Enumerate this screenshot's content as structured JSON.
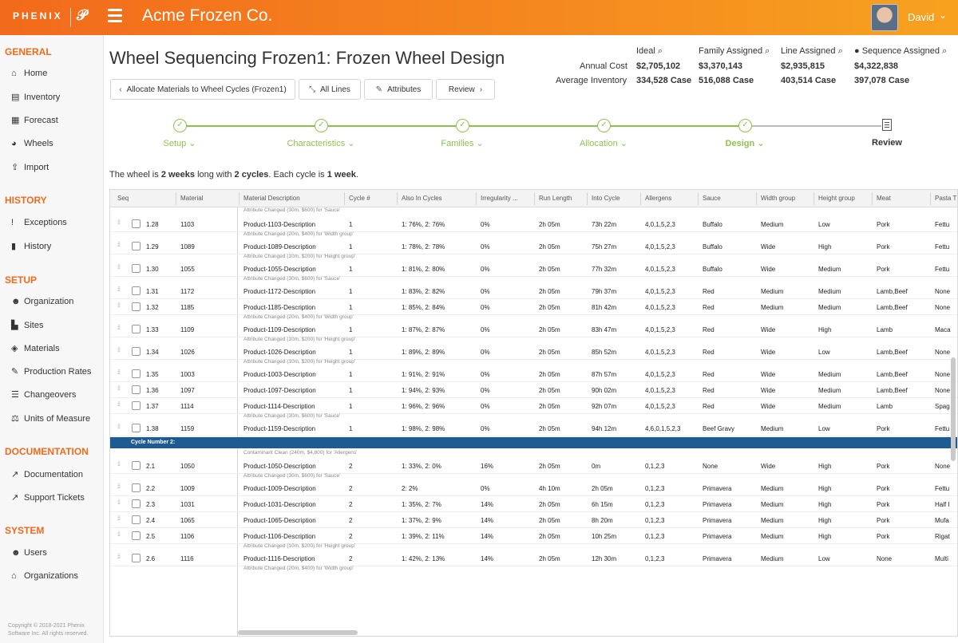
{
  "app": {
    "logo_text": "PHENIX",
    "logo_mark": "𝒫",
    "company": "Acme Frozen Co.",
    "user": "David"
  },
  "sidebar": {
    "sections": [
      {
        "title": "GENERAL",
        "items": [
          {
            "label": "Home",
            "icon": "home-icon",
            "glyph": "⌂"
          },
          {
            "label": "Inventory",
            "icon": "chart-icon",
            "glyph": "▤"
          },
          {
            "label": "Forecast",
            "icon": "map-icon",
            "glyph": "▦"
          },
          {
            "label": "Wheels",
            "icon": "pie-icon",
            "glyph": "◕"
          },
          {
            "label": "Import",
            "icon": "upload-icon",
            "glyph": "⇪"
          }
        ]
      },
      {
        "title": "HISTORY",
        "items": [
          {
            "label": "Exceptions",
            "icon": "exclamation-icon",
            "glyph": "!"
          },
          {
            "label": "History",
            "icon": "book-icon",
            "glyph": "▮"
          }
        ]
      },
      {
        "title": "SETUP",
        "items": [
          {
            "label": "Organization",
            "icon": "users-icon",
            "glyph": "☻"
          },
          {
            "label": "Sites",
            "icon": "building-icon",
            "glyph": "▙"
          },
          {
            "label": "Materials",
            "icon": "cube-icon",
            "glyph": "◈"
          },
          {
            "label": "Production Rates",
            "icon": "ruler-icon",
            "glyph": "✎"
          },
          {
            "label": "Changeovers",
            "icon": "list-icon",
            "glyph": "☰"
          },
          {
            "label": "Units of Measure",
            "icon": "scale-icon",
            "glyph": "⚖"
          }
        ]
      },
      {
        "title": "DOCUMENTATION",
        "items": [
          {
            "label": "Documentation",
            "icon": "external-link-icon",
            "glyph": "↗"
          },
          {
            "label": "Support Tickets",
            "icon": "external-link-icon",
            "glyph": "↗"
          }
        ]
      },
      {
        "title": "SYSTEM",
        "items": [
          {
            "label": "Users",
            "icon": "users-icon",
            "glyph": "☻"
          },
          {
            "label": "Organizations",
            "icon": "home-icon",
            "glyph": "⌂"
          }
        ]
      }
    ],
    "copyright": "Copyright © 2018-2021 Phenix Software Inc. All rights reserved."
  },
  "header": {
    "title": "Wheel Sequencing Frozen1: Frozen Wheel Design",
    "buttons": {
      "allocate": "Allocate Materials to Wheel Cycles (Frozen1)",
      "all_lines": "All Lines",
      "attributes": "Attributes",
      "review": "Review"
    }
  },
  "costs": {
    "row_labels": {
      "annual": "Annual Cost",
      "inventory": "Average Inventory"
    },
    "columns": [
      {
        "label": "Ideal",
        "annual": "$2,705,102",
        "inventory": "334,528 Case"
      },
      {
        "label": "Family Assigned",
        "annual": "$3,370,143",
        "inventory": "516,088 Case"
      },
      {
        "label": "Line Assigned",
        "annual": "$2,935,815",
        "inventory": "403,514 Case"
      },
      {
        "label": "Sequence Assigned",
        "annual": "$4,322,838",
        "inventory": "397,078 Case"
      }
    ]
  },
  "steps": [
    "Setup",
    "Characteristics",
    "Families",
    "Allocation",
    "Design",
    "Review"
  ],
  "summary": {
    "p1": "The wheel is ",
    "weeks": "2 weeks",
    "p2": " long with ",
    "cycles": "2 cycles",
    "p3": ". Each cycle is ",
    "cycle_len": "1 week",
    "p4": "."
  },
  "table": {
    "headers": [
      "Seq",
      "Material",
      "Material Description",
      "Cycle #",
      "Also In Cycles",
      "Irregularity ...",
      "Run Length",
      "Into Cycle",
      "Allergens",
      "Sauce",
      "Width group",
      "Height group",
      "Meat",
      "Pasta T"
    ],
    "top_annotation": "Attribute Changed (30m, $600) for 'Sauce'",
    "cycle_band": "Cycle Number 2:",
    "rows": [
      {
        "seq": "1.28",
        "material": "1103",
        "desc": "Product-1103-Description",
        "cycle": "1",
        "also": "1: 76%, 2: 76%",
        "irr": "0%",
        "run": "2h 05m",
        "into": "73h 22m",
        "allergens": "4,0,1,5,2,3",
        "sauce": "Buffalo",
        "width": "Medium",
        "height": "Low",
        "meat": "Pork",
        "pasta": "Fettu",
        "after": "Attribute Changed (20m, $400) for 'Width group'"
      },
      {
        "seq": "1.29",
        "material": "1089",
        "desc": "Product-1089-Description",
        "cycle": "1",
        "also": "1: 78%, 2: 78%",
        "irr": "0%",
        "run": "2h 05m",
        "into": "75h 27m",
        "allergens": "4,0,1,5,2,3",
        "sauce": "Buffalo",
        "width": "Wide",
        "height": "High",
        "meat": "Pork",
        "pasta": "Fettu",
        "after": "Attribute Changed (10m, $200) for 'Height group'"
      },
      {
        "seq": "1.30",
        "material": "1055",
        "desc": "Product-1055-Description",
        "cycle": "1",
        "also": "1: 81%, 2: 80%",
        "irr": "0%",
        "run": "2h 05m",
        "into": "77h 32m",
        "allergens": "4,0,1,5,2,3",
        "sauce": "Buffalo",
        "width": "Wide",
        "height": "Medium",
        "meat": "Pork",
        "pasta": "Fettu",
        "after": "Attribute Changed (30m, $600) for 'Sauce'"
      },
      {
        "seq": "1.31",
        "material": "1172",
        "desc": "Product-1172-Description",
        "cycle": "1",
        "also": "1: 83%, 2: 82%",
        "irr": "0%",
        "run": "2h 05m",
        "into": "79h 37m",
        "allergens": "4,0,1,5,2,3",
        "sauce": "Red",
        "width": "Medium",
        "height": "Medium",
        "meat": "Lamb,Beef",
        "pasta": "None",
        "after": ""
      },
      {
        "seq": "1.32",
        "material": "1185",
        "desc": "Product-1185-Description",
        "cycle": "1",
        "also": "1: 85%, 2: 84%",
        "irr": "0%",
        "run": "2h 05m",
        "into": "81h 42m",
        "allergens": "4,0,1,5,2,3",
        "sauce": "Red",
        "width": "Medium",
        "height": "Medium",
        "meat": "Lamb,Beef",
        "pasta": "None",
        "after": "Attribute Changed (20m, $400) for 'Width group'"
      },
      {
        "seq": "1.33",
        "material": "1109",
        "desc": "Product-1109-Description",
        "cycle": "1",
        "also": "1: 87%, 2: 87%",
        "irr": "0%",
        "run": "2h 05m",
        "into": "83h 47m",
        "allergens": "4,0,1,5,2,3",
        "sauce": "Red",
        "width": "Wide",
        "height": "High",
        "meat": "Lamb",
        "pasta": "Maca",
        "after": "Attribute Changed (10m, $200) for 'Height group'"
      },
      {
        "seq": "1.34",
        "material": "1026",
        "desc": "Product-1026-Description",
        "cycle": "1",
        "also": "1: 89%, 2: 89%",
        "irr": "0%",
        "run": "2h 05m",
        "into": "85h 52m",
        "allergens": "4,0,1,5,2,3",
        "sauce": "Red",
        "width": "Wide",
        "height": "Low",
        "meat": "Lamb,Beef",
        "pasta": "None",
        "after": "Attribute Changed (10m, $200) for 'Height group'"
      },
      {
        "seq": "1.35",
        "material": "1003",
        "desc": "Product-1003-Description",
        "cycle": "1",
        "also": "1: 91%, 2: 91%",
        "irr": "0%",
        "run": "2h 05m",
        "into": "87h 57m",
        "allergens": "4,0,1,5,2,3",
        "sauce": "Red",
        "width": "Wide",
        "height": "Medium",
        "meat": "Lamb,Beef",
        "pasta": "None",
        "after": ""
      },
      {
        "seq": "1.36",
        "material": "1097",
        "desc": "Product-1097-Description",
        "cycle": "1",
        "also": "1: 94%, 2: 93%",
        "irr": "0%",
        "run": "2h 05m",
        "into": "90h 02m",
        "allergens": "4,0,1,5,2,3",
        "sauce": "Red",
        "width": "Wide",
        "height": "Medium",
        "meat": "Lamb,Beef",
        "pasta": "None",
        "after": ""
      },
      {
        "seq": "1.37",
        "material": "1114",
        "desc": "Product-1114-Description",
        "cycle": "1",
        "also": "1: 96%, 2: 96%",
        "irr": "0%",
        "run": "2h 05m",
        "into": "92h 07m",
        "allergens": "4,0,1,5,2,3",
        "sauce": "Red",
        "width": "Wide",
        "height": "Medium",
        "meat": "Lamb",
        "pasta": "Spag",
        "after": "Attribute Changed (30m, $600) for 'Sauce'"
      },
      {
        "seq": "1.38",
        "material": "1159",
        "desc": "Product-1159-Description",
        "cycle": "1",
        "also": "1: 98%, 2: 98%",
        "irr": "0%",
        "run": "2h 05m",
        "into": "94h 12m",
        "allergens": "4,6,0,1,5,2,3",
        "sauce": "Beef Gravy",
        "width": "Medium",
        "height": "Low",
        "meat": "Pork",
        "pasta": "Fettu",
        "after": "",
        "band_after": true
      },
      {
        "seq": "2.1",
        "material": "1050",
        "desc": "Product-1050-Description",
        "cycle": "2",
        "also": "1: 33%, 2: 0%",
        "irr": "16%",
        "run": "2h 05m",
        "into": "0m",
        "allergens": "0,1,2,3",
        "sauce": "None",
        "width": "Wide",
        "height": "High",
        "meat": "Pork",
        "pasta": "None",
        "before": "Contaminant Clean (240m, $4,800) for 'Allergens'",
        "after": "Attribute Changed (30m, $600) for 'Sauce'"
      },
      {
        "seq": "2.2",
        "material": "1009",
        "desc": "Product-1009-Description",
        "cycle": "2",
        "also": "2: 2%",
        "irr": "0%",
        "run": "4h 10m",
        "into": "2h 05m",
        "allergens": "0,1,2,3",
        "sauce": "Primavera",
        "width": "Medium",
        "height": "High",
        "meat": "Pork",
        "pasta": "Fettu",
        "after": ""
      },
      {
        "seq": "2.3",
        "material": "1031",
        "desc": "Product-1031-Description",
        "cycle": "2",
        "also": "1: 35%, 2: 7%",
        "irr": "14%",
        "run": "2h 05m",
        "into": "6h 15m",
        "allergens": "0,1,2,3",
        "sauce": "Primavera",
        "width": "Medium",
        "height": "High",
        "meat": "Pork",
        "pasta": "Half I",
        "after": ""
      },
      {
        "seq": "2.4",
        "material": "1065",
        "desc": "Product-1065-Description",
        "cycle": "2",
        "also": "1: 37%, 2: 9%",
        "irr": "14%",
        "run": "2h 05m",
        "into": "8h 20m",
        "allergens": "0,1,2,3",
        "sauce": "Primavera",
        "width": "Medium",
        "height": "High",
        "meat": "Pork",
        "pasta": "Mufa",
        "after": ""
      },
      {
        "seq": "2.5",
        "material": "1106",
        "desc": "Product-1106-Description",
        "cycle": "2",
        "also": "1: 39%, 2: 11%",
        "irr": "14%",
        "run": "2h 05m",
        "into": "10h 25m",
        "allergens": "0,1,2,3",
        "sauce": "Primavera",
        "width": "Medium",
        "height": "High",
        "meat": "Pork",
        "pasta": "Rigat",
        "after": "Attribute Changed (10m, $200) for 'Height group'"
      },
      {
        "seq": "2.6",
        "material": "1116",
        "desc": "Product-1116-Description",
        "cycle": "2",
        "also": "1: 42%, 2: 13%",
        "irr": "14%",
        "run": "2h 05m",
        "into": "12h 30m",
        "allergens": "0,1,2,3",
        "sauce": "Primavera",
        "width": "Medium",
        "height": "Low",
        "meat": "None",
        "pasta": "Multi",
        "after": "Attribute Changed (20m, $400) for 'Width group'"
      }
    ]
  }
}
